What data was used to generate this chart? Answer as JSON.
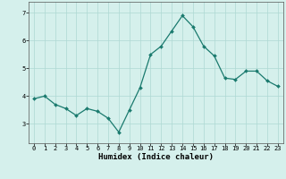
{
  "x": [
    0,
    1,
    2,
    3,
    4,
    5,
    6,
    7,
    8,
    9,
    10,
    11,
    12,
    13,
    14,
    15,
    16,
    17,
    18,
    19,
    20,
    21,
    22,
    23
  ],
  "y": [
    3.9,
    4.0,
    3.7,
    3.55,
    3.3,
    3.55,
    3.45,
    3.2,
    2.7,
    3.5,
    4.3,
    5.5,
    5.8,
    6.35,
    6.9,
    6.5,
    5.8,
    5.45,
    4.65,
    4.6,
    4.9,
    4.9,
    4.55,
    4.35
  ],
  "line_color": "#1a7a6e",
  "marker": "D",
  "markersize": 2.0,
  "linewidth": 0.9,
  "xlabel": "Humidex (Indice chaleur)",
  "xlabel_fontsize": 6.5,
  "xlabel_bold": true,
  "ylim": [
    2.3,
    7.4
  ],
  "xlim": [
    -0.5,
    23.5
  ],
  "yticks": [
    3,
    4,
    5,
    6,
    7
  ],
  "xticks": [
    0,
    1,
    2,
    3,
    4,
    5,
    6,
    7,
    8,
    9,
    10,
    11,
    12,
    13,
    14,
    15,
    16,
    17,
    18,
    19,
    20,
    21,
    22,
    23
  ],
  "tick_fontsize": 5.0,
  "bg_color": "#d5f0ec",
  "grid_color": "#aed8d3",
  "grid_linewidth": 0.5
}
